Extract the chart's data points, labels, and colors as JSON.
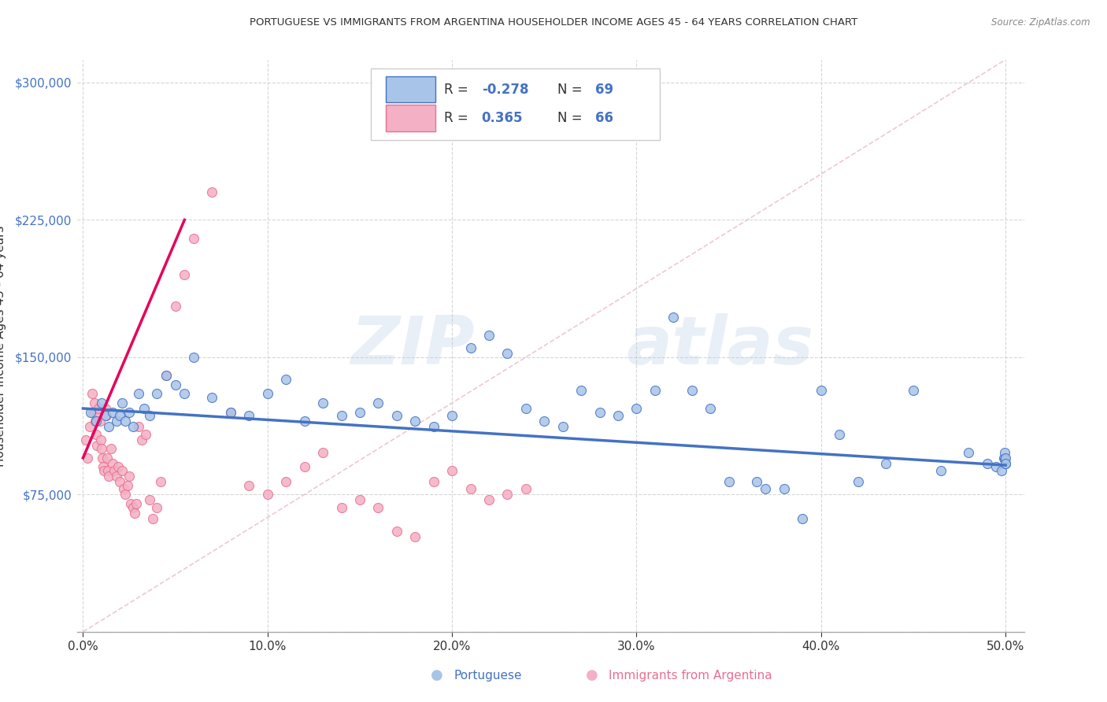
{
  "title": "PORTUGUESE VS IMMIGRANTS FROM ARGENTINA HOUSEHOLDER INCOME AGES 45 - 64 YEARS CORRELATION CHART",
  "source": "Source: ZipAtlas.com",
  "ylabel": "Householder Income Ages 45 - 64 years",
  "ylim": [
    0,
    312500
  ],
  "xlim": [
    -0.3,
    51
  ],
  "yticks": [
    0,
    75000,
    150000,
    225000,
    300000
  ],
  "xticks": [
    0,
    10,
    20,
    30,
    40,
    50
  ],
  "watermark": "ZIPAtlas",
  "color_blue_fill": "#a8c4e8",
  "color_blue_edge": "#4472c4",
  "color_pink_fill": "#f4b0c4",
  "color_pink_edge": "#e87090",
  "color_blue_line": "#4472c4",
  "color_pink_line": "#e8005a",
  "color_diag": "#e8b0c0",
  "blue_x": [
    0.4,
    0.7,
    1.0,
    1.2,
    1.4,
    1.6,
    1.8,
    2.0,
    2.1,
    2.3,
    2.5,
    2.7,
    3.0,
    3.3,
    3.6,
    4.0,
    4.5,
    5.0,
    5.5,
    6.0,
    7.0,
    8.0,
    9.0,
    10.0,
    11.0,
    12.0,
    13.0,
    14.0,
    15.0,
    16.0,
    17.0,
    18.0,
    19.0,
    20.0,
    21.0,
    22.0,
    23.0,
    24.0,
    25.0,
    26.0,
    27.0,
    28.0,
    29.0,
    30.0,
    31.0,
    32.0,
    33.0,
    34.0,
    35.0,
    36.5,
    37.0,
    38.0,
    39.0,
    40.0,
    41.0,
    42.0,
    43.5,
    45.0,
    46.5,
    48.0,
    49.0,
    49.5,
    49.8,
    49.9,
    49.95,
    49.97,
    49.99,
    50.0,
    50.0
  ],
  "blue_y": [
    120000,
    115000,
    125000,
    118000,
    112000,
    120000,
    115000,
    118000,
    125000,
    115000,
    120000,
    112000,
    130000,
    122000,
    118000,
    130000,
    140000,
    135000,
    130000,
    150000,
    128000,
    120000,
    118000,
    130000,
    138000,
    115000,
    125000,
    118000,
    120000,
    125000,
    118000,
    115000,
    112000,
    118000,
    155000,
    162000,
    152000,
    122000,
    115000,
    112000,
    132000,
    120000,
    118000,
    122000,
    132000,
    172000,
    132000,
    122000,
    82000,
    82000,
    78000,
    78000,
    62000,
    132000,
    108000,
    82000,
    92000,
    132000,
    88000,
    98000,
    92000,
    90000,
    88000,
    95000,
    98000,
    94000,
    92000,
    95000,
    92000
  ],
  "pink_x": [
    0.15,
    0.25,
    0.35,
    0.5,
    0.55,
    0.6,
    0.65,
    0.7,
    0.75,
    0.8,
    0.85,
    0.9,
    0.95,
    1.0,
    1.05,
    1.1,
    1.15,
    1.2,
    1.25,
    1.3,
    1.35,
    1.4,
    1.5,
    1.6,
    1.7,
    1.8,
    1.9,
    2.0,
    2.1,
    2.2,
    2.3,
    2.4,
    2.5,
    2.6,
    2.7,
    2.8,
    2.9,
    3.0,
    3.2,
    3.4,
    3.6,
    3.8,
    4.0,
    4.2,
    4.5,
    5.0,
    5.5,
    6.0,
    7.0,
    8.0,
    9.0,
    10.0,
    11.0,
    12.0,
    13.0,
    14.0,
    15.0,
    16.0,
    17.0,
    18.0,
    19.0,
    20.0,
    21.0,
    22.0,
    23.0,
    24.0
  ],
  "pink_y": [
    105000,
    95000,
    112000,
    130000,
    120000,
    125000,
    115000,
    108000,
    102000,
    118000,
    122000,
    115000,
    105000,
    100000,
    95000,
    90000,
    88000,
    122000,
    118000,
    95000,
    88000,
    85000,
    100000,
    92000,
    88000,
    85000,
    90000,
    82000,
    88000,
    78000,
    75000,
    80000,
    85000,
    70000,
    68000,
    65000,
    70000,
    112000,
    105000,
    108000,
    72000,
    62000,
    68000,
    82000,
    140000,
    178000,
    195000,
    215000,
    240000,
    120000,
    80000,
    75000,
    82000,
    90000,
    98000,
    68000,
    72000,
    68000,
    55000,
    52000,
    82000,
    88000,
    78000,
    72000,
    75000,
    78000
  ]
}
